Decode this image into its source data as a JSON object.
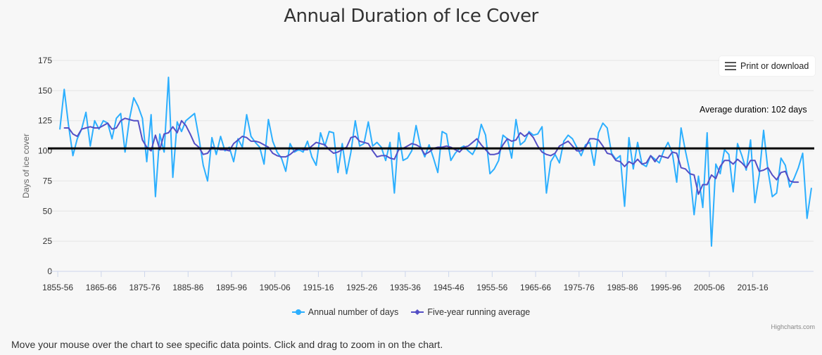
{
  "header": {
    "title": "Annual Duration of Ice Cover"
  },
  "export_menu": {
    "label": "Print or download",
    "icon": "hamburger-menu-icon"
  },
  "annotation": {
    "text": "Average duration: 102 days",
    "value": 102
  },
  "credits": "Highcharts.com",
  "footer": {
    "note": "Move your mouse over the chart to see specific data points. Click and drag to zoom in on the chart."
  },
  "colors": {
    "annual": "#2caffe",
    "running": "#544fc5",
    "average_line": "#000000",
    "grid": "#e6e6e6"
  },
  "chart_data": {
    "type": "line",
    "title": "Annual Duration of Ice Cover",
    "ylabel": "Days of ice cover",
    "xlabel": "",
    "ylim": [
      0,
      175
    ],
    "yticks": [
      0,
      25,
      50,
      75,
      100,
      125,
      150,
      175
    ],
    "x_start_year": 1855,
    "xticks": [
      "1855-56",
      "1865-66",
      "1875-76",
      "1885-86",
      "1895-96",
      "1905-06",
      "1915-16",
      "1925-26",
      "1935-36",
      "1945-46",
      "1955-56",
      "1965-66",
      "1975-76",
      "1985-86",
      "1995-96",
      "2005-06",
      "2015-16"
    ],
    "legend_position": "bottom-center",
    "grid": true,
    "series": [
      {
        "name": "Annual number of days",
        "values": [
          118,
          151,
          121,
          96,
          110,
          118,
          132,
          104,
          125,
          118,
          125,
          123,
          110,
          127,
          131,
          99,
          126,
          144,
          137,
          127,
          91,
          130,
          62,
          114,
          99,
          161,
          78,
          124,
          116,
          125,
          128,
          131,
          111,
          88,
          75,
          111,
          97,
          112,
          100,
          103,
          91,
          110,
          103,
          130,
          112,
          107,
          103,
          89,
          126,
          108,
          99,
          94,
          83,
          106,
          99,
          101,
          99,
          108,
          95,
          88,
          115,
          104,
          116,
          115,
          82,
          106,
          81,
          99,
          125,
          104,
          106,
          124,
          104,
          107,
          103,
          92,
          107,
          65,
          115,
          92,
          94,
          100,
          121,
          104,
          95,
          105,
          94,
          82,
          116,
          114,
          92,
          98,
          102,
          104,
          100,
          97,
          104,
          122,
          113,
          81,
          85,
          92,
          113,
          110,
          94,
          126,
          105,
          108,
          116,
          113,
          114,
          120,
          65,
          91,
          97,
          90,
          108,
          113,
          110,
          103,
          96,
          105,
          107,
          88,
          115,
          123,
          119,
          98,
          93,
          96,
          54,
          111,
          85,
          107,
          89,
          87,
          96,
          93,
          90,
          100,
          107,
          98,
          74,
          119,
          100,
          83,
          47,
          79,
          53,
          115,
          21,
          89,
          81,
          101,
          97,
          66,
          106,
          96,
          84,
          109,
          57,
          80,
          117,
          84,
          62,
          65,
          94,
          88,
          70,
          77,
          86,
          98,
          44,
          69
        ],
        "start_index": 0
      },
      {
        "name": "Five-year running average",
        "values": [
          119,
          119,
          114,
          112,
          118,
          119,
          120,
          119,
          119,
          121,
          123,
          118,
          119,
          125,
          127,
          126,
          125,
          125,
          109,
          103,
          100,
          113,
          101,
          114,
          115,
          120,
          115,
          125,
          121,
          114,
          106,
          103,
          97,
          98,
          103,
          102,
          101,
          101,
          100,
          106,
          109,
          112,
          111,
          108,
          108,
          107,
          105,
          103,
          98,
          96,
          95,
          95,
          97,
          100,
          102,
          101,
          101,
          104,
          107,
          106,
          105,
          101,
          98,
          99,
          101,
          103,
          111,
          112,
          108,
          107,
          106,
          100,
          95,
          96,
          96,
          94,
          93,
          101,
          102,
          104,
          106,
          105,
          103,
          97,
          99,
          102,
          103,
          103,
          104,
          103,
          101,
          99,
          103,
          104,
          107,
          110,
          105,
          101,
          97,
          97,
          98,
          105,
          110,
          108,
          109,
          115,
          112,
          115,
          111,
          104,
          99,
          97,
          96,
          98,
          104,
          106,
          108,
          104,
          100,
          100,
          103,
          110,
          110,
          109,
          104,
          98,
          97,
          92,
          91,
          87,
          91,
          89,
          93,
          89,
          90,
          96,
          91,
          96,
          95,
          94,
          99,
          98,
          86,
          85,
          81,
          80,
          64,
          72,
          72,
          80,
          77,
          87,
          92,
          92,
          89,
          93,
          90,
          86,
          92,
          92,
          83,
          84,
          86,
          80,
          76,
          82,
          83,
          75,
          74,
          74
        ],
        "start_index": 1
      }
    ]
  }
}
